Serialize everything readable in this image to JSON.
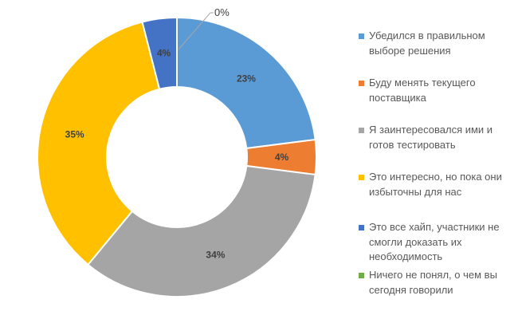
{
  "chart_data": {
    "type": "pie",
    "donut": true,
    "start_angle": "top, clockwise",
    "categories": [
      "Убедился в правильном выборе решения",
      "Буду менять текущего поставщика",
      "Я заинтересовался ими и готов тестировать",
      "Это интересно, но пока они избыточны для нас",
      "Это все хайп, участники не смогли доказать их необходимость",
      "Ничего не понял, о чем вы сегодня говорили"
    ],
    "values": [
      23,
      4,
      34,
      35,
      4,
      0
    ],
    "data_labels": [
      "23%",
      "4%",
      "34%",
      "35%",
      "4%",
      "0%"
    ],
    "colors": [
      "#5B9BD5",
      "#ED7D31",
      "#A5A5A5",
      "#FFC000",
      "#4472C4",
      "#70AD47"
    ],
    "legend_position": "right"
  }
}
